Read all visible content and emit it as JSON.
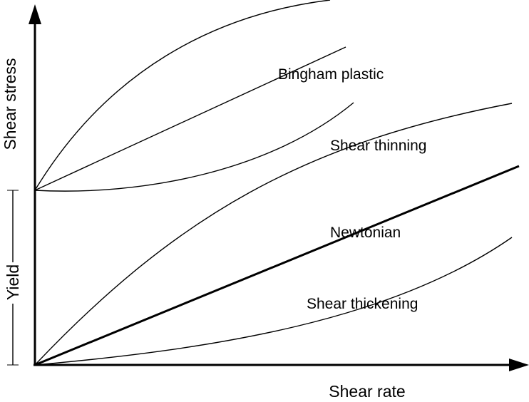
{
  "axes": {
    "x_label": "Shear rate",
    "y_label": "Shear stress",
    "yield_label": "Yield"
  },
  "curves": {
    "bingham_plastic": "Bingham plastic",
    "shear_thinning": "Shear thinning",
    "newtonian": "Newtonian",
    "shear_thickening": "Shear thickening"
  },
  "colors": {
    "stroke": "#000000",
    "background": "#ffffff"
  }
}
